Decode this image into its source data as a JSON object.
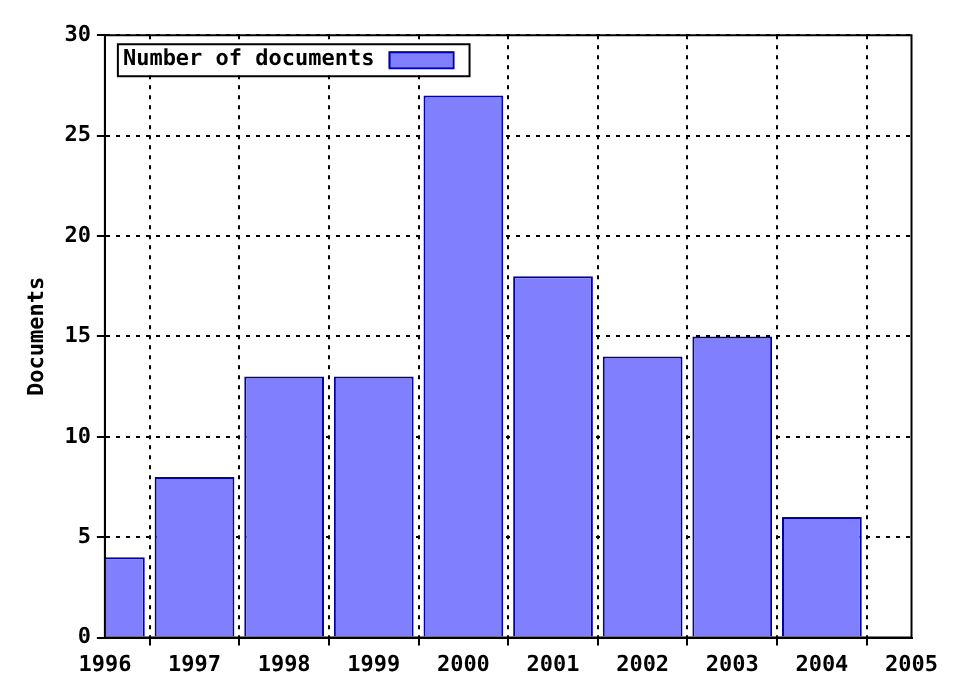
{
  "chart_data": {
    "type": "bar",
    "ylabel": "Documents",
    "x": [
      1996,
      1997,
      1998,
      1999,
      2000,
      2001,
      2002,
      2003,
      2004
    ],
    "series": [
      {
        "name": "Number of documents",
        "color": "#8080ff",
        "values": [
          4,
          8,
          13,
          13,
          27,
          18,
          14,
          15,
          6
        ]
      }
    ],
    "xlim": [
      1996,
      2005
    ],
    "xticks": [
      1996,
      1997,
      1998,
      1999,
      2000,
      2001,
      2002,
      2003,
      2004,
      2005
    ],
    "ylim": [
      0,
      30
    ],
    "yticks": [
      0,
      5,
      10,
      15,
      20,
      25,
      30
    ],
    "grid": true,
    "legend": "top left"
  }
}
